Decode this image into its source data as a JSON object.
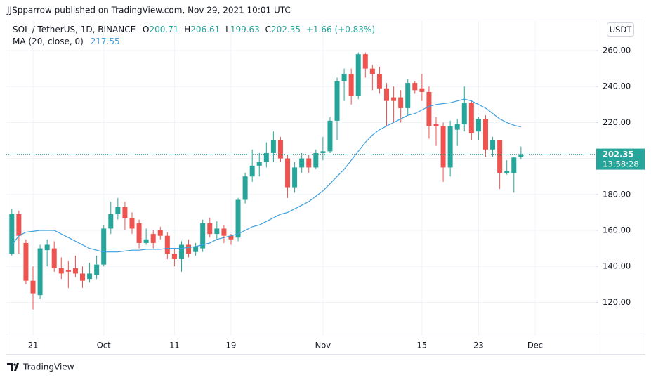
{
  "header": {
    "publisher": "JJSpparrow published on TradingView.com, Nov 29, 2021 10:01 UTC",
    "symbol": "SOL / TetherUS, 1D, BINANCE",
    "open_label": "O",
    "high_label": "H",
    "low_label": "L",
    "close_label": "C",
    "change": "+1.66",
    "change_pct": "(+0.83%)",
    "currency": "USDT",
    "countdown": "13:58:28",
    "brand": "TradingView"
  },
  "chart_data": {
    "type": "candlestick",
    "grid": true,
    "up_color": "#26a69a",
    "down_color": "#ef5350",
    "categories": [
      null,
      null,
      null,
      "21",
      null,
      null,
      null,
      null,
      null,
      null,
      null,
      null,
      null,
      "Oct",
      null,
      null,
      null,
      null,
      null,
      null,
      null,
      null,
      null,
      "11",
      null,
      null,
      null,
      null,
      null,
      null,
      null,
      "19",
      null,
      null,
      null,
      null,
      null,
      null,
      null,
      null,
      null,
      null,
      null,
      null,
      "Nov",
      null,
      null,
      null,
      null,
      null,
      null,
      null,
      null,
      null,
      null,
      null,
      null,
      null,
      "15",
      null,
      null,
      null,
      null,
      null,
      null,
      null,
      "23",
      null,
      null,
      null,
      null,
      null,
      null,
      null,
      "Dec"
    ],
    "open": [
      147,
      169,
      153,
      132,
      124,
      149,
      150,
      139,
      138,
      139,
      136,
      133,
      135,
      141,
      161,
      169,
      173,
      167,
      164,
      153,
      158,
      160,
      157,
      147,
      144,
      152,
      148,
      150,
      164,
      158,
      161,
      157,
      156,
      177,
      190,
      196,
      198,
      203,
      210,
      200,
      184,
      195,
      200,
      195,
      203,
      204,
      221,
      243,
      247,
      235,
      258,
      250,
      247,
      239,
      234,
      234,
      228,
      242,
      239,
      237,
      219,
      218,
      195,
      216,
      219,
      231,
      215,
      222,
      205,
      210,
      192,
      192,
      200.71,
      null,
      null
    ],
    "high": [
      172,
      171,
      155,
      140,
      152,
      155,
      154,
      145,
      143,
      146,
      140,
      142,
      146,
      163,
      176,
      178,
      176,
      170,
      166,
      161,
      160,
      162,
      159,
      150,
      154,
      155,
      153,
      166,
      167,
      165,
      163,
      158,
      178,
      192,
      205,
      203,
      209,
      215,
      212,
      202,
      198,
      203,
      202,
      205,
      212,
      223,
      245,
      250,
      250,
      259,
      259,
      252,
      251,
      242,
      240,
      238,
      244,
      243,
      247,
      240,
      223,
      220,
      221,
      222,
      240,
      232,
      223,
      224,
      212,
      210,
      199,
      201,
      206.61,
      null,
      null
    ],
    "low": [
      146,
      147,
      130,
      116,
      122,
      140,
      137,
      133,
      128,
      134,
      128,
      131,
      133,
      140,
      158,
      166,
      160,
      158,
      150,
      152,
      150,
      155,
      144,
      140,
      137,
      145,
      146,
      148,
      156,
      155,
      153,
      152,
      154,
      175,
      187,
      190,
      195,
      198,
      198,
      178,
      181,
      192,
      192,
      194,
      199,
      203,
      210,
      232,
      230,
      233,
      245,
      238,
      236,
      218,
      220,
      220,
      224,
      236,
      232,
      211,
      207,
      187,
      190,
      207,
      215,
      210,
      210,
      201,
      201,
      183,
      191,
      181,
      199.63,
      null,
      null
    ],
    "close": [
      169,
      157,
      132,
      125,
      150,
      152,
      139,
      136,
      137,
      136,
      132,
      136,
      141,
      161,
      169,
      173,
      167,
      161,
      153,
      155,
      153,
      157,
      147,
      144,
      152,
      147,
      151,
      164,
      158,
      161,
      157,
      155,
      177,
      190,
      196,
      198,
      203,
      210,
      200,
      184,
      195,
      200,
      195,
      203,
      204,
      221,
      243,
      247,
      235,
      258,
      250,
      247,
      239,
      232,
      232,
      228,
      242,
      238,
      237,
      218,
      218,
      195,
      218,
      219,
      231,
      214,
      222,
      205,
      210,
      192,
      193,
      200.5,
      202.35,
      null,
      null
    ],
    "ma": {
      "name": "MA (20, close, 0)",
      "color": "#3d9fdc",
      "values": [
        152,
        157,
        159,
        159.5,
        160,
        160,
        160,
        158,
        156,
        154,
        152,
        150,
        149,
        148,
        148,
        148,
        148.5,
        149,
        149,
        149.5,
        149.5,
        149.5,
        150,
        150,
        150,
        150.5,
        151,
        152,
        153,
        155,
        156,
        157,
        158,
        160,
        162,
        163,
        165,
        167,
        169,
        170,
        172,
        174,
        176,
        179,
        182,
        186,
        190,
        194,
        199,
        204,
        209,
        213,
        216,
        218,
        220,
        222,
        224,
        225,
        227,
        229,
        230,
        230.5,
        231,
        232,
        233,
        232,
        230,
        228,
        225,
        222,
        220,
        218.5,
        217.55,
        null,
        null
      ]
    },
    "ylim": [
      101.4,
      277.2
    ],
    "yticks": [
      {
        "value": 120,
        "label": "120.00"
      },
      {
        "value": 140,
        "label": "140.00"
      },
      {
        "value": 160,
        "label": "160.00"
      },
      {
        "value": 180,
        "label": "180.00"
      },
      {
        "value": 200,
        "label": "200.00"
      },
      {
        "value": 220,
        "label": "220.00"
      },
      {
        "value": 240,
        "label": "240.00"
      },
      {
        "value": 260,
        "label": "260.00"
      }
    ]
  }
}
